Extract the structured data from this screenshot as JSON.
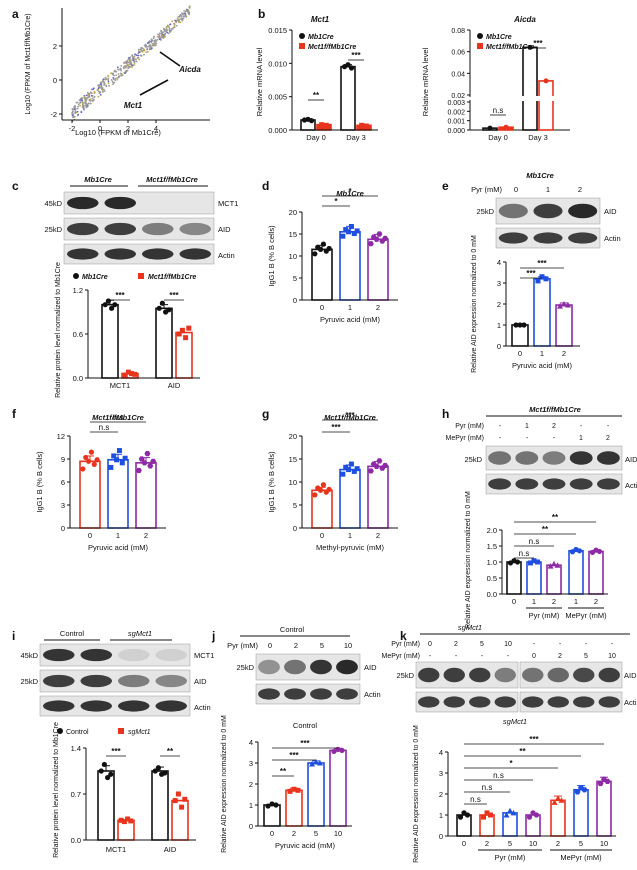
{
  "panels": {
    "a": {
      "letter": "a",
      "xlabel_main": "Log",
      "xlabel_sub": "10",
      "xlabel_rest": " (FPKM of Mb1",
      "xlabel_sup": "Cre",
      "xlabel_end": ")",
      "ylabel": "Log10 (FPKM of Mct1f/fMb1Cre)",
      "xticks": [
        "-2",
        "0",
        "2",
        "4"
      ],
      "yticks": [
        "-2",
        "0",
        "2"
      ],
      "labels": [
        "Aicda",
        "Mct1"
      ]
    },
    "b": {
      "letter": "b",
      "mct1": {
        "title": "Mct1",
        "ylabel": "Relative mRNA level",
        "yticks": [
          "0.000",
          "0.005",
          "0.010",
          "0.015"
        ],
        "cats": [
          "Day 0",
          "Day 3"
        ],
        "sig": [
          "**",
          "***"
        ]
      },
      "aicda": {
        "title": "Aicda",
        "ylabel": "Relative mRNA level",
        "yticks": [
          "0.000",
          "0.001",
          "0.002",
          "0.003",
          "0.02",
          "0.04",
          "0.06",
          "0.08"
        ],
        "cats": [
          "Day 0",
          "Day 3"
        ],
        "sig": [
          "n.s",
          "***"
        ]
      },
      "legend": [
        "Mb1Cre",
        "Mct1f/fMb1Cre"
      ]
    },
    "c": {
      "letter": "c",
      "groups": [
        "Mb1Cre",
        "Mct1f/fMb1Cre"
      ],
      "kd": [
        "45kD",
        "25kD"
      ],
      "bands": [
        "MCT1",
        "AID",
        "Actin"
      ],
      "legend": [
        "Mb1Cre",
        "Mct1f/fMb1Cre"
      ],
      "ylabel": "Relative protein level normalized to Mb1Cre",
      "yticks": [
        "0.0",
        "0.6",
        "1.2"
      ],
      "cats": [
        "MCT1",
        "AID"
      ],
      "sig": [
        "***",
        "***"
      ]
    },
    "d": {
      "letter": "d",
      "title": "Mb1Cre",
      "ylabel": "IgG1 B (% B cells)",
      "xlabel": "Pyruvic acid (mM)",
      "cats": [
        "0",
        "1",
        "2"
      ],
      "yticks": [
        "0",
        "5",
        "10",
        "15",
        "20"
      ],
      "sig": [
        "*",
        "*"
      ]
    },
    "e": {
      "letter": "e",
      "title": "Mb1Cre",
      "pyr_label": "Pyr (mM)",
      "pyr_vals": [
        "0",
        "1",
        "2"
      ],
      "kd": "25kD",
      "bands": [
        "AID",
        "Actin"
      ],
      "ylabel": "Relative AID expression normalized to 0 mM",
      "xlabel": "Pyruvic acid (mM)",
      "cats": [
        "0",
        "1",
        "2"
      ],
      "yticks": [
        "0",
        "1",
        "2",
        "3",
        "4"
      ],
      "sig": [
        "***",
        "***"
      ]
    },
    "f": {
      "letter": "f",
      "title": "Mct1f/fMb1Cre",
      "ylabel": "IgG1 B (% B cells)",
      "xlabel": "Pyruvic acid (mM)",
      "cats": [
        "0",
        "1",
        "2"
      ],
      "yticks": [
        "0",
        "3",
        "6",
        "9",
        "12"
      ],
      "sig": [
        "n.s",
        "n.s"
      ]
    },
    "g": {
      "letter": "g",
      "title": "Mct1f/fMb1Cre",
      "ylabel": "IgG1 B (% B cells)",
      "xlabel": "Methyl-pyruvic (mM)",
      "cats": [
        "0",
        "1",
        "2"
      ],
      "yticks": [
        "0",
        "5",
        "10",
        "15",
        "20"
      ],
      "sig": [
        "***",
        "***"
      ]
    },
    "h": {
      "letter": "h",
      "title": "Mct1f/fMb1Cre",
      "pyr_label": "Pyr (mM)",
      "mepyr_label": "MePyr (mM)",
      "pyr_vals": [
        "-",
        "1",
        "2",
        "-",
        "-"
      ],
      "mepyr_vals": [
        "-",
        "-",
        "-",
        "1",
        "2"
      ],
      "kd": "25kD",
      "bands": [
        "AID",
        "Actin"
      ],
      "ylabel": "Relative AID expression normalized to 0 mM",
      "cats": [
        "0",
        "1",
        "2",
        "1",
        "2"
      ],
      "xgroups": [
        "Pyr (mM)",
        "MePyr (mM)"
      ],
      "yticks": [
        "0.0",
        "0.5",
        "1.0",
        "1.5",
        "2.0"
      ],
      "sig": [
        "**",
        "**",
        "n.s",
        "n.s"
      ]
    },
    "i": {
      "letter": "i",
      "groups": [
        "Control",
        "sgMct1"
      ],
      "kd": [
        "45kD",
        "25kD"
      ],
      "bands": [
        "MCT1",
        "AID",
        "Actin"
      ],
      "legend": [
        "Control",
        "sgMct1"
      ],
      "ylabel": "Relative protein level normalized to Mb1Cre",
      "yticks": [
        "0.0",
        "0.7",
        "1.4"
      ],
      "cats": [
        "MCT1",
        "AID"
      ],
      "sig": [
        "***",
        "**"
      ]
    },
    "j": {
      "letter": "j",
      "title": "Control",
      "pyr_label": "Pyr (mM)",
      "pyr_vals": [
        "0",
        "2",
        "5",
        "10"
      ],
      "kd": "25kD",
      "bands": [
        "AID",
        "Actin"
      ],
      "subtitle": "Control",
      "ylabel": "Relative AID expression normalized to 0 mM",
      "xlabel": "Pyruvic acid (mM)",
      "cats": [
        "0",
        "2",
        "5",
        "10"
      ],
      "yticks": [
        "0",
        "1",
        "2",
        "3",
        "4"
      ],
      "sig": [
        "***",
        "***",
        "**"
      ]
    },
    "k": {
      "letter": "k",
      "title": "sgMct1",
      "pyr_label": "Pyr (mM)",
      "mepyr_label": "MePyr (mM)",
      "pyr_vals": [
        "0",
        "2",
        "5",
        "10",
        "-",
        "-",
        "-",
        "-"
      ],
      "mepyr_vals": [
        "-",
        "-",
        "-",
        "-",
        "0",
        "2",
        "5",
        "10"
      ],
      "kd": "25kD",
      "bands": [
        "AID",
        "Actin"
      ],
      "subtitle": "sgMct1",
      "ylabel": "Relative AID expression normalized to 0 mM",
      "cats": [
        "0",
        "2",
        "5",
        "10",
        "2",
        "5",
        "10"
      ],
      "xgroups": [
        "Pyr (mM)",
        "MePyr (mM)"
      ],
      "yticks": [
        "0",
        "1",
        "2",
        "3",
        "4"
      ],
      "sig": [
        "***",
        "**",
        "*",
        "n.s",
        "n.s",
        "n.s"
      ]
    }
  },
  "colors": {
    "black": "#111111",
    "red": "#e8341c",
    "blue": "#1f4fe0",
    "purple": "#8e2aa6"
  },
  "chart_data": [
    {
      "panel": "b",
      "type": "bar",
      "title": "Mct1",
      "categories": [
        "Day 0",
        "Day 3"
      ],
      "series": [
        {
          "name": "Mb1Cre",
          "values": [
            0.0015,
            0.0095
          ]
        },
        {
          "name": "Mct1f/fMb1Cre",
          "values": [
            0.0008,
            0.0007
          ]
        }
      ],
      "ylabel": "Relative mRNA level",
      "ylim": [
        0,
        0.015
      ]
    },
    {
      "panel": "b",
      "type": "bar",
      "title": "Aicda",
      "categories": [
        "Day 0",
        "Day 3"
      ],
      "series": [
        {
          "name": "Mb1Cre",
          "values": [
            0.0002,
            0.064
          ]
        },
        {
          "name": "Mct1f/fMb1Cre",
          "values": [
            0.0003,
            0.033
          ]
        }
      ],
      "ylabel": "Relative mRNA level",
      "ylim": [
        0,
        0.08
      ]
    },
    {
      "panel": "c",
      "type": "bar",
      "categories": [
        "MCT1",
        "AID"
      ],
      "series": [
        {
          "name": "Mb1Cre",
          "values": [
            1.0,
            0.95
          ]
        },
        {
          "name": "Mct1f/fMb1Cre",
          "values": [
            0.06,
            0.62
          ]
        }
      ],
      "ylabel": "Relative protein level normalized to Mb1Cre",
      "ylim": [
        0,
        1.2
      ]
    },
    {
      "panel": "d",
      "type": "bar",
      "title": "Mb1Cre",
      "categories": [
        "0",
        "1",
        "2"
      ],
      "values": [
        11.5,
        15.5,
        13.8
      ],
      "xlabel": "Pyruvic acid (mM)",
      "ylabel": "IgG1 B (% B cells)",
      "ylim": [
        0,
        20
      ]
    },
    {
      "panel": "e",
      "type": "bar",
      "categories": [
        "0",
        "1",
        "2"
      ],
      "values": [
        1.0,
        3.2,
        1.95
      ],
      "xlabel": "Pyruvic acid (mM)",
      "ylabel": "Relative AID expression normalized to 0 mM",
      "ylim": [
        0,
        4
      ]
    },
    {
      "panel": "f",
      "type": "bar",
      "title": "Mct1f/fMb1Cre",
      "categories": [
        "0",
        "1",
        "2"
      ],
      "values": [
        8.7,
        8.9,
        8.5
      ],
      "xlabel": "Pyruvic acid (mM)",
      "ylabel": "IgG1 B (% B cells)",
      "ylim": [
        0,
        12
      ]
    },
    {
      "panel": "g",
      "type": "bar",
      "title": "Mct1f/fMb1Cre",
      "categories": [
        "0",
        "1",
        "2"
      ],
      "values": [
        8.2,
        12.7,
        13.4
      ],
      "xlabel": "Methyl-pyruvic (mM)",
      "ylabel": "IgG1 B (% B cells)",
      "ylim": [
        0,
        20
      ]
    },
    {
      "panel": "h",
      "type": "bar",
      "categories": [
        "0",
        "Pyr 1",
        "Pyr 2",
        "MePyr 1",
        "MePyr 2"
      ],
      "values": [
        1.0,
        1.0,
        0.9,
        1.35,
        1.33
      ],
      "ylabel": "Relative AID expression normalized to 0 mM",
      "ylim": [
        0,
        2
      ]
    },
    {
      "panel": "i",
      "type": "bar",
      "categories": [
        "MCT1",
        "AID"
      ],
      "series": [
        {
          "name": "Control",
          "values": [
            1.05,
            1.05
          ]
        },
        {
          "name": "sgMct1",
          "values": [
            0.3,
            0.6
          ]
        }
      ],
      "ylabel": "Relative protein level normalized to Mb1Cre",
      "ylim": [
        0,
        1.4
      ]
    },
    {
      "panel": "j",
      "type": "bar",
      "title": "Control",
      "categories": [
        "0",
        "2",
        "5",
        "10"
      ],
      "values": [
        1.0,
        1.7,
        3.0,
        3.6
      ],
      "xlabel": "Pyruvic acid (mM)",
      "ylabel": "Relative AID expression normalized to 0 mM",
      "ylim": [
        0,
        4
      ]
    },
    {
      "panel": "k",
      "type": "bar",
      "title": "sgMct1",
      "categories": [
        "0",
        "Pyr 2",
        "Pyr 5",
        "Pyr 10",
        "MePyr 2",
        "MePyr 5",
        "MePyr 10"
      ],
      "values": [
        1.0,
        1.0,
        1.1,
        1.0,
        1.7,
        2.2,
        2.6
      ],
      "ylabel": "Relative AID expression normalized to 0 mM",
      "ylim": [
        0,
        4
      ]
    }
  ]
}
